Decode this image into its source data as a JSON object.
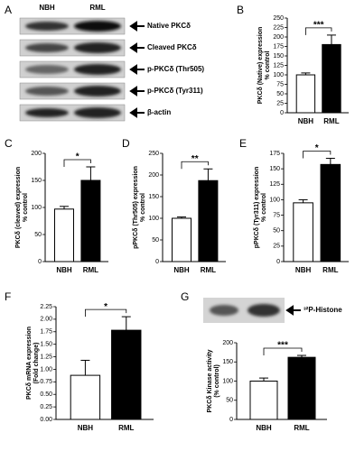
{
  "blot": {
    "panel": "A",
    "lanes": [
      "NBH",
      "RML"
    ],
    "bands": [
      "Native PKCδ",
      "Cleaved PKCδ",
      "p-PKCδ (Thr505)",
      "p-PKCδ (Tyr311)",
      "β-actin"
    ]
  },
  "kinase_blot": {
    "label": "³²P-Histone"
  },
  "chart_data": [
    {
      "type": "bar",
      "panel": "B",
      "ylabel": [
        "PKCδ (Native) expression",
        "% control"
      ],
      "categories": [
        "NBH",
        "RML"
      ],
      "values": [
        100,
        180
      ],
      "errors": [
        5,
        25
      ],
      "colors": [
        "#ffffff",
        "#000000"
      ],
      "ylim": [
        0,
        250
      ],
      "yticks": [
        0,
        25,
        50,
        75,
        100,
        125,
        150,
        175,
        200,
        225,
        250
      ],
      "significance": "***"
    },
    {
      "type": "bar",
      "panel": "C",
      "ylabel": [
        "PKCδ (cleaved) expression",
        "% control"
      ],
      "categories": [
        "NBH",
        "RML"
      ],
      "values": [
        97,
        150
      ],
      "errors": [
        5,
        25
      ],
      "colors": [
        "#ffffff",
        "#000000"
      ],
      "ylim": [
        0,
        200
      ],
      "yticks": [
        0,
        50,
        100,
        150,
        200
      ],
      "significance": "*"
    },
    {
      "type": "bar",
      "panel": "D",
      "ylabel": [
        "pPKCδ (Thr505) expression",
        "% control"
      ],
      "categories": [
        "NBH",
        "RML"
      ],
      "values": [
        100,
        187
      ],
      "errors": [
        3,
        27
      ],
      "colors": [
        "#ffffff",
        "#000000"
      ],
      "ylim": [
        0,
        250
      ],
      "yticks": [
        0,
        50,
        100,
        150,
        200,
        250
      ],
      "significance": "**"
    },
    {
      "type": "bar",
      "panel": "E",
      "ylabel": [
        "pPKCδ (Tyr311) expression",
        "% control"
      ],
      "categories": [
        "NBH",
        "RML"
      ],
      "values": [
        95,
        157
      ],
      "errors": [
        5,
        10
      ],
      "colors": [
        "#ffffff",
        "#000000"
      ],
      "ylim": [
        0,
        175
      ],
      "yticks": [
        0,
        25,
        50,
        75,
        100,
        125,
        150,
        175
      ],
      "significance": "*"
    },
    {
      "type": "bar",
      "panel": "F",
      "ylabel": [
        "PKCδ mRNA expression",
        "(Fold change)"
      ],
      "categories": [
        "NBH",
        "RML"
      ],
      "values": [
        0.88,
        1.78
      ],
      "errors": [
        0.3,
        0.27
      ],
      "colors": [
        "#ffffff",
        "#000000"
      ],
      "ylim": [
        0,
        2.25
      ],
      "yticks": [
        {
          "value": 0,
          "label": "0.00"
        },
        {
          "value": 0.25,
          "label": "0.25"
        },
        {
          "value": 0.5,
          "label": "0.50"
        },
        {
          "value": 0.75,
          "label": "0.75"
        },
        {
          "value": 1,
          "label": "1.00"
        },
        {
          "value": 1.25,
          "label": "1.25"
        },
        {
          "value": 1.5,
          "label": "1.50"
        },
        {
          "value": 1.75,
          "label": "1.75"
        },
        {
          "value": 2,
          "label": "2.00"
        },
        {
          "value": 2.25,
          "label": "2.25"
        }
      ],
      "significance": "*"
    },
    {
      "type": "bar",
      "panel": "G",
      "ylabel": [
        "PKCδ Kinase activity",
        "(% control)"
      ],
      "categories": [
        "NBH",
        "RML"
      ],
      "values": [
        100,
        162
      ],
      "errors": [
        8,
        5
      ],
      "colors": [
        "#ffffff",
        "#000000"
      ],
      "ylim": [
        0,
        200
      ],
      "yticks": [
        0,
        50,
        100,
        150,
        200
      ],
      "significance": "***"
    }
  ]
}
